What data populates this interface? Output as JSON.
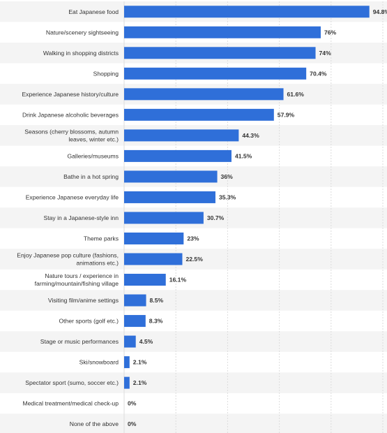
{
  "chart_data": {
    "type": "bar",
    "orientation": "horizontal",
    "categories": [
      [
        "Eat Japanese food"
      ],
      [
        "Nature/scenery sightseeing"
      ],
      [
        "Walking in shopping districts"
      ],
      [
        "Shopping"
      ],
      [
        "Experience Japanese history/culture"
      ],
      [
        "Drink Japanese alcoholic beverages"
      ],
      [
        "Seasons (cherry blossoms, autumn",
        "leaves, winter etc.)"
      ],
      [
        "Galleries/museums"
      ],
      [
        "Bathe in a hot spring"
      ],
      [
        "Experience Japanese everyday life"
      ],
      [
        "Stay in a Japanese-style inn"
      ],
      [
        "Theme parks"
      ],
      [
        "Enjoy Japanese pop culture (fashions,",
        "animations etc.)"
      ],
      [
        "Nature tours / experience in",
        "farming/mountain/fishing village"
      ],
      [
        "Visiting film/anime settings"
      ],
      [
        "Other sports (golf etc.)"
      ],
      [
        "Stage or music performances"
      ],
      [
        "Ski/snowboard"
      ],
      [
        "Spectator sport (sumo, soccer etc.)"
      ],
      [
        "Medical treatment/medical check-up"
      ],
      [
        "None of the above"
      ]
    ],
    "values": [
      94.8,
      76,
      74,
      70.4,
      61.6,
      57.9,
      44.3,
      41.5,
      36,
      35.3,
      30.7,
      23,
      22.5,
      16.1,
      8.5,
      8.3,
      4.5,
      2.1,
      2.1,
      0,
      0
    ],
    "value_labels": [
      "94.8%",
      "76%",
      "74%",
      "70.4%",
      "61.6%",
      "57.9%",
      "44.3%",
      "41.5%",
      "36%",
      "35.3%",
      "30.7%",
      "23%",
      "22.5%",
      "16.1%",
      "8.5%",
      "8.3%",
      "4.5%",
      "2.1%",
      "2.1%",
      "0%",
      "0%"
    ],
    "xlim": [
      0,
      100
    ],
    "grid": true,
    "bar_color": "#2f6fd9",
    "title": "",
    "xlabel": "",
    "ylabel": ""
  }
}
